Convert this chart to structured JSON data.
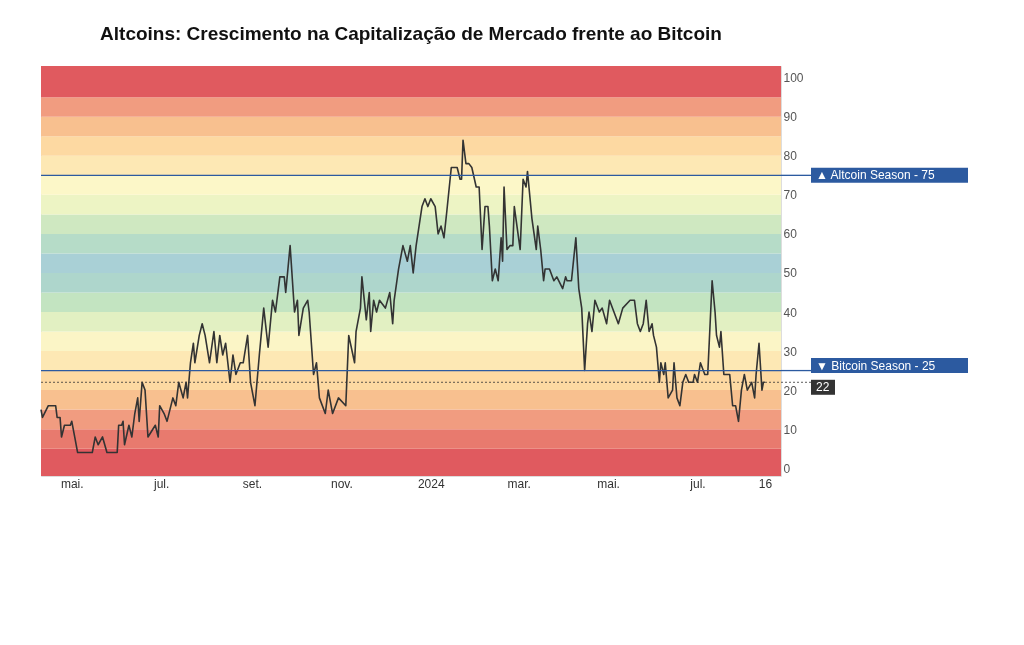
{
  "chart_data": {
    "type": "line",
    "title": "Altcoins: Crescimento na Capitalização de Mercado frente ao Bitcoin",
    "x": [
      "2023-04-10",
      "2023-04-11",
      "2023-04-15",
      "2023-04-20",
      "2023-04-21",
      "2023-04-23",
      "2023-04-24",
      "2023-04-26",
      "2023-04-30",
      "2023-05-01",
      "2023-05-03",
      "2023-05-05",
      "2023-05-15",
      "2023-05-17",
      "2023-05-19",
      "2023-05-22",
      "2023-05-25",
      "2023-06-01",
      "2023-06-02",
      "2023-06-04",
      "2023-06-05",
      "2023-06-06",
      "2023-06-09",
      "2023-06-11",
      "2023-06-13",
      "2023-06-15",
      "2023-06-16",
      "2023-06-18",
      "2023-06-20",
      "2023-06-22",
      "2023-06-27",
      "2023-06-29",
      "2023-06-30",
      "2023-07-03",
      "2023-07-05",
      "2023-07-09",
      "2023-07-11",
      "2023-07-13",
      "2023-07-16",
      "2023-07-18",
      "2023-07-19",
      "2023-07-21",
      "2023-07-23",
      "2023-07-24",
      "2023-07-27",
      "2023-07-29",
      "2023-07-31",
      "2023-08-03",
      "2023-08-06",
      "2023-08-08",
      "2023-08-10",
      "2023-08-12",
      "2023-08-14",
      "2023-08-17",
      "2023-08-19",
      "2023-08-21",
      "2023-08-24",
      "2023-08-26",
      "2023-08-29",
      "2023-08-31",
      "2023-09-03",
      "2023-09-06",
      "2023-09-09",
      "2023-09-12",
      "2023-09-15",
      "2023-09-17",
      "2023-09-20",
      "2023-09-23",
      "2023-09-24",
      "2023-09-27",
      "2023-09-30",
      "2023-10-02",
      "2023-10-03",
      "2023-10-06",
      "2023-10-09",
      "2023-10-10",
      "2023-10-13",
      "2023-10-15",
      "2023-10-17",
      "2023-10-21",
      "2023-10-23",
      "2023-10-26",
      "2023-10-30",
      "2023-11-04",
      "2023-11-06",
      "2023-11-10",
      "2023-11-11",
      "2023-11-14",
      "2023-11-15",
      "2023-11-18",
      "2023-11-20",
      "2023-11-21",
      "2023-11-23",
      "2023-11-25",
      "2023-11-27",
      "2023-12-01",
      "2023-12-04",
      "2023-12-06",
      "2023-12-07",
      "2023-12-10",
      "2023-12-13",
      "2023-12-16",
      "2023-12-18",
      "2023-12-20",
      "2023-12-22",
      "2023-12-26",
      "2023-12-28",
      "2023-12-30",
      "2024-01-01",
      "2024-01-04",
      "2024-01-06",
      "2024-01-08",
      "2024-01-10",
      "2024-01-12",
      "2024-01-15",
      "2024-01-19",
      "2024-01-21",
      "2024-01-22",
      "2024-01-23",
      "2024-01-25",
      "2024-01-27",
      "2024-01-29",
      "2024-02-01",
      "2024-02-03",
      "2024-02-05",
      "2024-02-07",
      "2024-02-09",
      "2024-02-10",
      "2024-02-12",
      "2024-02-14",
      "2024-02-16",
      "2024-02-18",
      "2024-02-19",
      "2024-02-20",
      "2024-02-22",
      "2024-02-24",
      "2024-02-26",
      "2024-02-27",
      "2024-03-02",
      "2024-03-04",
      "2024-03-06",
      "2024-03-07",
      "2024-03-10",
      "2024-03-13",
      "2024-03-14",
      "2024-03-16",
      "2024-03-18",
      "2024-03-19",
      "2024-03-22",
      "2024-03-25",
      "2024-03-27",
      "2024-03-31",
      "2024-04-02",
      "2024-04-03",
      "2024-04-06",
      "2024-04-09",
      "2024-04-11",
      "2024-04-13",
      "2024-04-15",
      "2024-04-17",
      "2024-04-18",
      "2024-04-20",
      "2024-04-22",
      "2024-04-25",
      "2024-04-27",
      "2024-04-30",
      "2024-05-02",
      "2024-05-05",
      "2024-05-08",
      "2024-05-11",
      "2024-05-16",
      "2024-05-19",
      "2024-05-21",
      "2024-05-23",
      "2024-05-25",
      "2024-05-27",
      "2024-05-29",
      "2024-05-31",
      "2024-06-01",
      "2024-06-03",
      "2024-06-05",
      "2024-06-06",
      "2024-06-08",
      "2024-06-09",
      "2024-06-11",
      "2024-06-14",
      "2024-06-15",
      "2024-06-17",
      "2024-06-19",
      "2024-06-21",
      "2024-06-23",
      "2024-06-25",
      "2024-06-28",
      "2024-06-29",
      "2024-07-01",
      "2024-07-03",
      "2024-07-06",
      "2024-07-08",
      "2024-07-11",
      "2024-07-13",
      "2024-07-14",
      "2024-07-16",
      "2024-07-17",
      "2024-07-19",
      "2024-07-23",
      "2024-07-25",
      "2024-07-27",
      "2024-07-29",
      "2024-07-31",
      "2024-08-02",
      "2024-08-04",
      "2024-08-07",
      "2024-08-09",
      "2024-08-10",
      "2024-08-12",
      "2024-08-14",
      "2024-08-15",
      "2024-08-16"
    ],
    "series": [
      {
        "color": "#333333",
        "values": [
          15,
          13,
          16,
          16,
          13,
          13,
          8,
          11,
          11,
          12,
          8,
          4,
          4,
          8,
          6,
          8,
          4,
          4,
          11,
          11,
          12,
          6,
          11,
          8,
          14,
          18,
          12,
          22,
          20,
          8,
          11,
          8,
          16,
          14,
          12,
          18,
          16,
          22,
          18,
          22,
          18,
          27,
          32,
          27,
          34,
          37,
          34,
          27,
          35,
          27,
          34,
          29,
          32,
          22,
          29,
          24,
          27,
          27,
          34,
          22,
          16,
          29,
          41,
          31,
          43,
          40,
          49,
          49,
          45,
          57,
          40,
          43,
          34,
          41,
          43,
          40,
          24,
          27,
          18,
          14,
          20,
          14,
          18,
          16,
          34,
          27,
          35,
          41,
          49,
          38,
          45,
          35,
          43,
          40,
          43,
          41,
          45,
          37,
          43,
          51,
          57,
          53,
          57,
          50,
          57,
          67,
          69,
          67,
          69,
          67,
          60,
          62,
          59,
          66,
          77,
          77,
          74,
          74,
          84,
          78,
          78,
          77,
          72,
          72,
          56,
          67,
          67,
          62,
          48,
          51,
          48,
          59,
          53,
          72,
          56,
          57,
          57,
          67,
          56,
          74,
          72,
          76,
          64,
          56,
          62,
          56,
          48,
          51,
          51,
          48,
          49,
          46,
          49,
          48,
          48,
          59,
          46,
          41,
          25,
          37,
          40,
          35,
          43,
          40,
          41,
          37,
          43,
          40,
          37,
          41,
          43,
          43,
          37,
          35,
          37,
          43,
          35,
          37,
          34,
          31,
          22,
          27,
          24,
          27,
          18,
          20,
          27,
          18,
          16,
          22,
          24,
          22,
          22,
          24,
          22,
          27,
          24,
          24,
          48,
          40,
          34,
          31,
          35,
          24,
          24,
          16,
          16,
          12,
          20,
          24,
          20,
          22,
          18,
          24,
          32,
          20,
          22,
          22
        ]
      }
    ],
    "xlim": [
      "2023-04-10",
      "2024-08-27"
    ],
    "xticks": [
      {
        "value": "2023-05-01",
        "label": "mai."
      },
      {
        "value": "2023-07-01",
        "label": "jul."
      },
      {
        "value": "2023-09-01",
        "label": "set."
      },
      {
        "value": "2023-11-01",
        "label": "nov."
      },
      {
        "value": "2024-01-01",
        "label": "2024"
      },
      {
        "value": "2024-03-01",
        "label": "mar."
      },
      {
        "value": "2024-05-01",
        "label": "mai."
      },
      {
        "value": "2024-07-01",
        "label": "jul."
      },
      {
        "value": "2024-08-16",
        "label": "16"
      }
    ],
    "ylim": [
      -2,
      103
    ],
    "yticks": [
      0,
      10,
      20,
      30,
      40,
      50,
      60,
      70,
      80,
      90,
      100
    ],
    "ref_lines": [
      {
        "axis": "y",
        "value": 75,
        "label": "▲ Altcoin Season - 75",
        "color": "#2c5aa0",
        "line_style": "solid"
      },
      {
        "axis": "y",
        "value": 25,
        "label": "▼ Bitcoin Season - 25",
        "color": "#2c5aa0",
        "line_style": "solid"
      },
      {
        "axis": "y",
        "value": 22,
        "label": "22",
        "color": "#333333",
        "line_style": "dotted"
      }
    ],
    "bands": [
      {
        "axis": "y",
        "from": -2,
        "to": 5,
        "color": "#e05a5f"
      },
      {
        "axis": "y",
        "from": 5,
        "to": 10,
        "color": "#e87a6e"
      },
      {
        "axis": "y",
        "from": 10,
        "to": 15,
        "color": "#f19c80"
      },
      {
        "axis": "y",
        "from": 15,
        "to": 20,
        "color": "#f8c08f"
      },
      {
        "axis": "y",
        "from": 20,
        "to": 25,
        "color": "#fdd9a2"
      },
      {
        "axis": "y",
        "from": 25,
        "to": 30,
        "color": "#fde8b4"
      },
      {
        "axis": "y",
        "from": 30,
        "to": 35,
        "color": "#fbf5c6"
      },
      {
        "axis": "y",
        "from": 35,
        "to": 40,
        "color": "#e2f0c2"
      },
      {
        "axis": "y",
        "from": 40,
        "to": 45,
        "color": "#c3e4c1"
      },
      {
        "axis": "y",
        "from": 45,
        "to": 50,
        "color": "#aed6cc"
      },
      {
        "axis": "y",
        "from": 50,
        "to": 55,
        "color": "#a9d0d6"
      },
      {
        "axis": "y",
        "from": 55,
        "to": 60,
        "color": "#b6dcc8"
      },
      {
        "axis": "y",
        "from": 60,
        "to": 65,
        "color": "#cfe8c1"
      },
      {
        "axis": "y",
        "from": 65,
        "to": 70,
        "color": "#edf4c4"
      },
      {
        "axis": "y",
        "from": 70,
        "to": 75,
        "color": "#fcf7c8"
      },
      {
        "axis": "y",
        "from": 75,
        "to": 80,
        "color": "#fde8b4"
      },
      {
        "axis": "y",
        "from": 80,
        "to": 85,
        "color": "#fdd9a2"
      },
      {
        "axis": "y",
        "from": 85,
        "to": 90,
        "color": "#f8c08f"
      },
      {
        "axis": "y",
        "from": 90,
        "to": 95,
        "color": "#f19c80"
      },
      {
        "axis": "y",
        "from": 95,
        "to": 103,
        "color": "#e05a5f"
      }
    ],
    "grid": false,
    "marker": "none",
    "line_style": "solid"
  }
}
